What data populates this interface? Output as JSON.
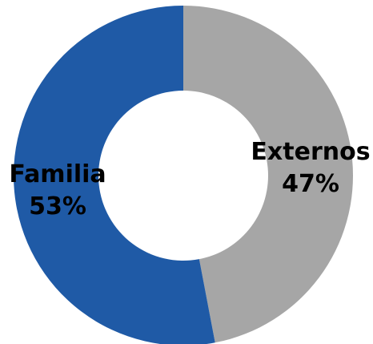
{
  "chart_data": {
    "type": "pie",
    "variant": "donut",
    "slices": [
      {
        "label": "Externos",
        "value": 47,
        "value_label": "47%",
        "color": "#A6A6A6"
      },
      {
        "label": "Familia",
        "value": 53,
        "value_label": "53%",
        "color": "#1F5AA6"
      }
    ],
    "start": "top",
    "direction": "clockwise"
  }
}
